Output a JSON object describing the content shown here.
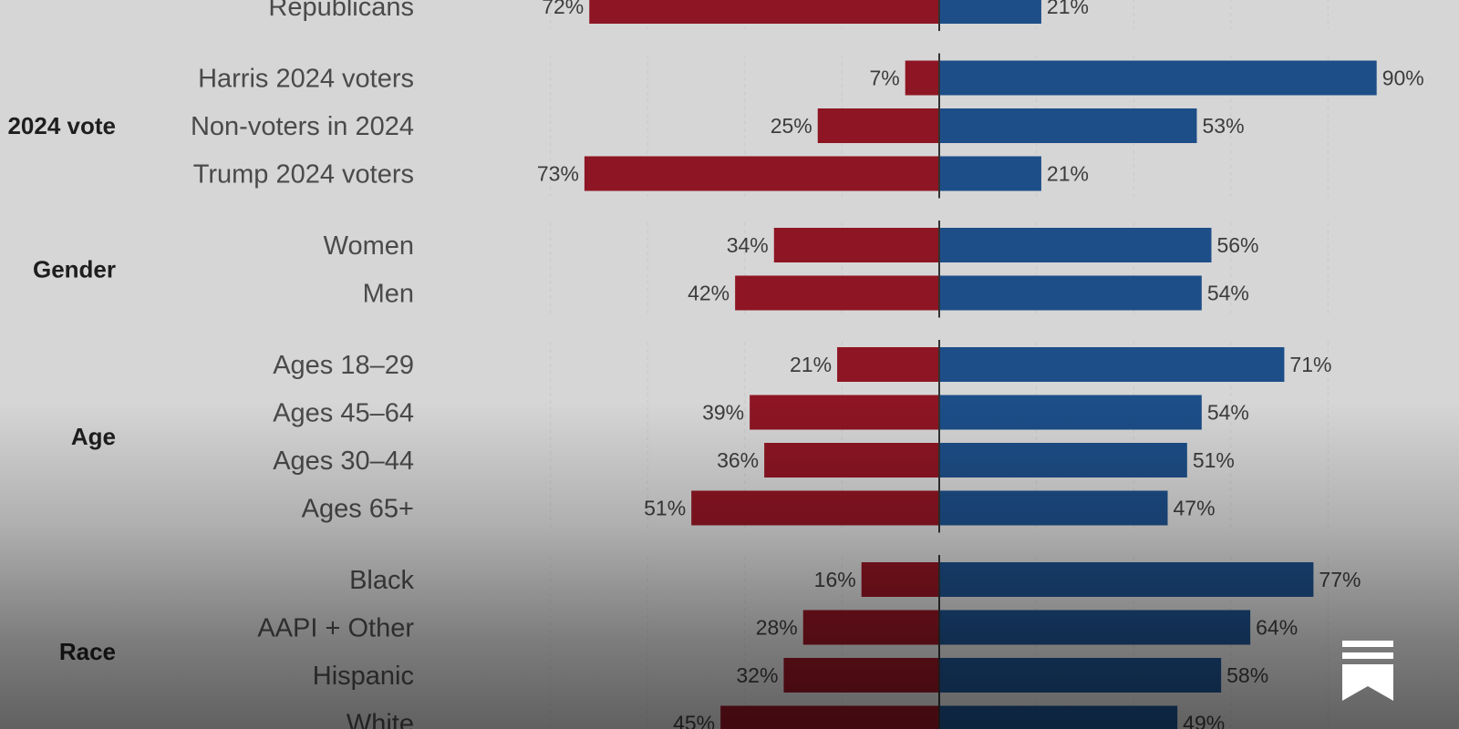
{
  "colors": {
    "left": "#8e1523",
    "right": "#1d4e88",
    "background": "#d6d6d6"
  },
  "logo": {
    "icon": "publication-logo-icon"
  },
  "chart_data": {
    "type": "bar",
    "orientation": "diverging-horizontal",
    "xlim": [
      -90,
      90
    ],
    "grid": true,
    "groups": [
      {
        "label": "",
        "rows": [
          {
            "label": "Republicans",
            "left": 72,
            "right": 21
          }
        ]
      },
      {
        "label": "2024 vote",
        "rows": [
          {
            "label": "Harris 2024 voters",
            "left": 7,
            "right": 90
          },
          {
            "label": "Non-voters in 2024",
            "left": 25,
            "right": 53
          },
          {
            "label": "Trump 2024 voters",
            "left": 73,
            "right": 21
          }
        ]
      },
      {
        "label": "Gender",
        "rows": [
          {
            "label": "Women",
            "left": 34,
            "right": 56
          },
          {
            "label": "Men",
            "left": 42,
            "right": 54
          }
        ]
      },
      {
        "label": "Age",
        "rows": [
          {
            "label": "Ages 18–29",
            "left": 21,
            "right": 71
          },
          {
            "label": "Ages 45–64",
            "left": 39,
            "right": 54
          },
          {
            "label": "Ages 30–44",
            "left": 36,
            "right": 51
          },
          {
            "label": "Ages 65+",
            "left": 51,
            "right": 47
          }
        ]
      },
      {
        "label": "Race",
        "rows": [
          {
            "label": "Black",
            "left": 16,
            "right": 77
          },
          {
            "label": "AAPI + Other",
            "left": 28,
            "right": 64
          },
          {
            "label": "Hispanic",
            "left": 32,
            "right": 58
          },
          {
            "label": "White",
            "left": 45,
            "right": 49
          }
        ]
      }
    ]
  }
}
